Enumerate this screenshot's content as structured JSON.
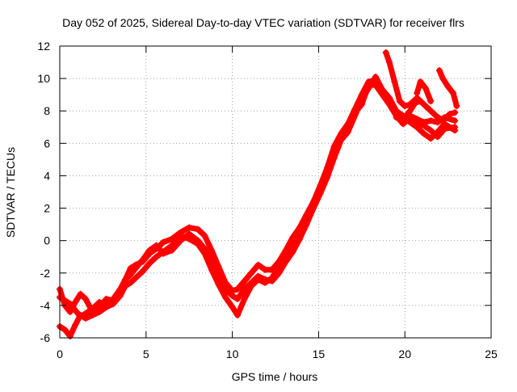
{
  "chart_data": {
    "type": "scatter",
    "title": "Day 052 of 2025, Sidereal Day-to-day VTEC variation (SDTVAR) for receiver flrs",
    "xlabel": "GPS time / hours",
    "ylabel": "SDTVAR / TECUs",
    "xlim": [
      0,
      25
    ],
    "ylim": [
      -6,
      12
    ],
    "xticks": [
      0,
      5,
      10,
      15,
      20,
      25
    ],
    "yticks": [
      -6,
      -4,
      -2,
      0,
      2,
      4,
      6,
      8,
      10,
      12
    ],
    "grid": true,
    "marker": "plus",
    "colors": {
      "series": "#ff0000",
      "axis": "#000000",
      "grid": "#a0a0a0"
    },
    "series": [
      {
        "x": [
          0,
          0.3,
          0.6,
          0.9,
          1.2,
          1.5,
          1.9,
          2.3,
          2.7,
          3.1,
          3.5,
          3.8,
          4.1,
          4.4,
          4.8,
          5.2,
          5.6,
          6.0,
          6.5,
          7.0,
          7.5,
          8.0,
          8.4,
          8.8,
          9.2,
          9.6,
          10.0,
          10.3,
          10.7,
          11.1,
          11.5,
          11.9,
          12.3,
          12.7,
          13.1,
          13.5,
          13.9,
          14.3,
          14.7,
          15.1,
          15.5,
          15.9,
          16.3,
          16.7,
          17.1,
          17.5,
          17.9,
          18.3,
          18.7,
          19.1,
          19.5,
          19.9,
          20.3,
          20.7,
          21.1,
          21.5,
          21.9,
          22.3,
          22.9
        ],
        "y": [
          -3.0,
          -4.0,
          -4.4,
          -3.8,
          -3.3,
          -3.6,
          -4.4,
          -4.1,
          -3.6,
          -3.7,
          -3.4,
          -2.4,
          -1.7,
          -1.5,
          -1.3,
          -0.8,
          -0.5,
          -0.1,
          0.1,
          0.5,
          0.8,
          0.7,
          0.3,
          -0.6,
          -1.6,
          -2.6,
          -3.1,
          -3.0,
          -2.5,
          -2.0,
          -1.5,
          -1.8,
          -1.8,
          -1.3,
          -0.6,
          0.2,
          0.8,
          1.6,
          2.4,
          3.4,
          4.5,
          5.8,
          6.6,
          7.2,
          8.1,
          9.0,
          9.8,
          9.9,
          9.3,
          8.7,
          8.0,
          7.5,
          7.7,
          7.5,
          7.3,
          7.4,
          7.3,
          7.6,
          7.4
        ]
      },
      {
        "x": [
          0,
          0.3,
          0.6,
          0.9,
          1.2,
          1.5,
          1.9,
          2.3,
          2.7,
          3.1,
          3.5,
          3.8,
          4.1,
          4.4,
          4.8,
          5.2,
          5.6,
          6.0,
          6.5,
          7.0,
          7.5,
          8.0,
          8.4,
          8.8,
          9.2,
          9.6,
          10.0,
          10.3,
          10.7,
          11.1,
          11.5,
          11.9,
          12.3,
          12.7,
          13.1,
          13.5,
          13.9,
          14.3,
          14.7,
          15.1,
          15.5,
          15.9,
          16.3,
          16.7,
          17.1,
          17.5,
          17.9,
          18.3,
          18.7,
          19.1,
          19.5,
          19.9,
          20.3,
          20.7,
          21.1,
          21.5,
          21.9,
          22.3,
          22.9
        ],
        "y": [
          -3.5,
          -3.7,
          -3.9,
          -4.3,
          -4.7,
          -4.5,
          -4.2,
          -3.8,
          -4.0,
          -3.6,
          -3.0,
          -2.4,
          -2.1,
          -1.7,
          -1.2,
          -0.6,
          -0.3,
          -0.8,
          -0.6,
          0.0,
          0.4,
          0.0,
          -0.5,
          -1.4,
          -2.3,
          -3.0,
          -3.4,
          -3.6,
          -3.0,
          -2.6,
          -2.2,
          -2.4,
          -2.5,
          -2.0,
          -1.3,
          -0.7,
          0.1,
          1.0,
          2.0,
          2.9,
          3.9,
          5.1,
          6.2,
          6.7,
          7.7,
          8.7,
          9.4,
          10.1,
          9.3,
          8.8,
          8.0,
          7.7,
          7.3,
          7.0,
          6.6,
          6.3,
          6.7,
          7.2,
          6.8
        ]
      },
      {
        "x": [
          0,
          0.3,
          0.6,
          0.9,
          1.2,
          1.5,
          1.9,
          2.3,
          2.7,
          3.1,
          3.5,
          3.8,
          4.1,
          4.4,
          4.8,
          5.2,
          5.6,
          6.0,
          6.5,
          7.0,
          7.5,
          8.0,
          8.4,
          8.8,
          9.2,
          9.6,
          10.0,
          10.3,
          10.7,
          11.1,
          11.5,
          11.9,
          12.3,
          12.7,
          13.1,
          13.5,
          13.9,
          14.3,
          14.7,
          15.1,
          15.5,
          15.9,
          16.3,
          16.7,
          17.1,
          17.5,
          17.9,
          18.3,
          18.7,
          19.1,
          19.5,
          19.9,
          20.3,
          20.7,
          21.1,
          21.5,
          21.9,
          22.3,
          22.9
        ],
        "y": [
          -5.3,
          -5.5,
          -5.9,
          -5.2,
          -4.6,
          -4.8,
          -4.6,
          -4.4,
          -4.1,
          -3.9,
          -3.4,
          -2.8,
          -2.6,
          -2.3,
          -1.9,
          -1.4,
          -1.0,
          -0.7,
          -0.3,
          0.3,
          0.1,
          -0.2,
          -0.8,
          -1.8,
          -2.7,
          -3.5,
          -4.1,
          -4.6,
          -3.6,
          -2.8,
          -2.4,
          -2.6,
          -2.3,
          -1.6,
          -1.1,
          -0.3,
          0.6,
          1.3,
          2.1,
          3.1,
          4.1,
          5.4,
          6.4,
          6.9,
          7.9,
          8.4,
          9.6,
          9.6,
          9.0,
          8.4,
          7.7,
          7.2,
          7.6,
          7.3,
          7.1,
          6.8,
          6.4,
          6.9,
          7.0
        ]
      },
      {
        "x": [
          18.9,
          19.1,
          19.4,
          19.7,
          20.0,
          20.3,
          20.7,
          21.0,
          21.4,
          21.8,
          22.2,
          22.6,
          22.9
        ],
        "y": [
          11.6,
          11.0,
          9.8,
          8.6,
          8.3,
          8.4,
          8.8,
          8.5,
          8.1,
          7.7,
          7.4,
          7.8,
          7.9
        ]
      },
      {
        "x": [
          19.5,
          19.7,
          20.0,
          20.3,
          20.6,
          20.9
        ],
        "y": [
          7.6,
          7.5,
          7.6,
          8.0,
          8.5,
          8.6
        ]
      },
      {
        "x": [
          20.7,
          20.9,
          21.2,
          21.5
        ],
        "y": [
          9.1,
          9.8,
          9.4,
          8.6
        ]
      },
      {
        "x": [
          22.0,
          22.2,
          22.5,
          22.8,
          23.0
        ],
        "y": [
          10.5,
          10.0,
          9.5,
          9.1,
          8.3
        ]
      }
    ]
  }
}
